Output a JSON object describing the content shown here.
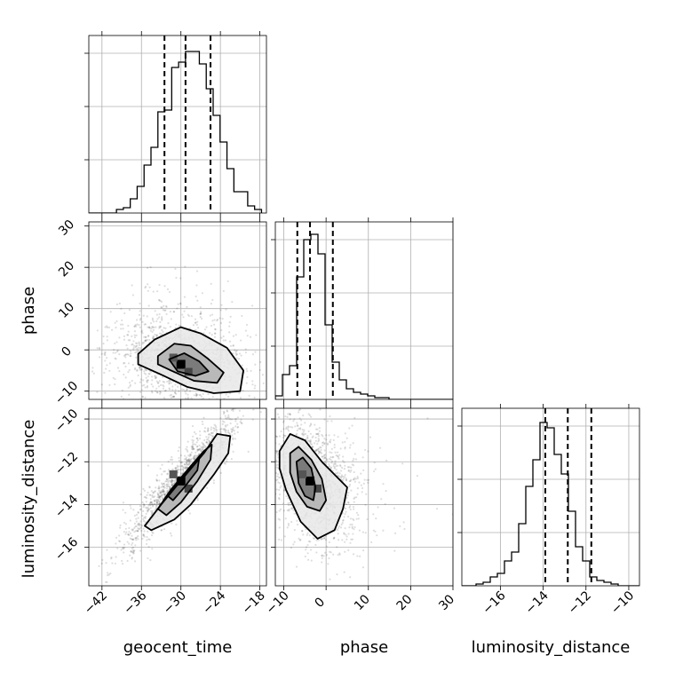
{
  "chart_data": [
    {
      "type": "histogram",
      "panel": "geocent_time",
      "ylim": [
        0,
        1
      ],
      "xlim": [
        -44,
        -17
      ],
      "xticks": [
        -42,
        -36,
        -30,
        -24,
        -18
      ],
      "bin_edges": [
        -44.0,
        -42.95,
        -41.9,
        -40.85,
        -39.8,
        -38.75,
        -37.7,
        -36.65,
        -35.6,
        -34.55,
        -33.5,
        -32.45,
        -31.4,
        -30.35,
        -29.3,
        -28.25,
        -27.2,
        -26.15,
        -25.1,
        -24.05,
        -23.0,
        -21.95,
        -20.9,
        -19.85,
        -18.8,
        -17.75
      ],
      "counts": [
        0.0,
        0.0,
        0.0,
        0.0,
        0.02,
        0.03,
        0.08,
        0.15,
        0.27,
        0.37,
        0.57,
        0.58,
        0.82,
        0.85,
        0.91,
        0.91,
        0.84,
        0.7,
        0.55,
        0.4,
        0.25,
        0.12,
        0.12,
        0.04,
        0.02
      ],
      "quantiles": [
        -32.5,
        -29.3,
        -25.5
      ]
    },
    {
      "type": "histogram",
      "panel": "phase",
      "ylim": [
        0,
        1
      ],
      "xlim": [
        -12,
        30
      ],
      "xticks": [
        -10,
        0,
        10,
        20,
        30
      ],
      "bin_edges": [
        -12.0,
        -10.32,
        -8.64,
        -6.96,
        -5.28,
        -3.6,
        -1.92,
        -0.24,
        1.44,
        3.12,
        4.8,
        6.48,
        8.16,
        9.84,
        11.52,
        13.2,
        14.88,
        16.56,
        18.24,
        19.92,
        21.6,
        23.28,
        24.96,
        26.64,
        28.32,
        30.0
      ],
      "counts": [
        0.02,
        0.14,
        0.19,
        0.69,
        0.9,
        0.93,
        0.82,
        0.42,
        0.21,
        0.11,
        0.06,
        0.04,
        0.03,
        0.02,
        0.01,
        0.01,
        0.0,
        0.0,
        0.0,
        0.0,
        0.0,
        0.0,
        0.0,
        0.0,
        0.0
      ],
      "quantiles": [
        -6.8,
        -3.8,
        1.6
      ]
    },
    {
      "type": "histogram",
      "panel": "luminosity_distance",
      "ylim": [
        0,
        1
      ],
      "xlim": [
        -17.8,
        -9.5
      ],
      "xticks": [
        -16,
        -14,
        -12,
        -10
      ],
      "bin_edges": [
        -17.8,
        -17.468,
        -17.136,
        -16.804,
        -16.472,
        -16.14,
        -15.808,
        -15.476,
        -15.144,
        -14.812,
        -14.48,
        -14.148,
        -13.816,
        -13.484,
        -13.152,
        -12.82,
        -12.488,
        -12.156,
        -11.824,
        -11.492,
        -11.16,
        -10.828,
        -10.496,
        -10.164,
        -9.832,
        -9.5
      ],
      "counts": [
        0.0,
        0.0,
        0.01,
        0.02,
        0.05,
        0.07,
        0.14,
        0.19,
        0.35,
        0.56,
        0.71,
        0.92,
        0.89,
        0.74,
        0.63,
        0.42,
        0.22,
        0.14,
        0.05,
        0.03,
        0.02,
        0.01,
        0.0,
        0.0,
        0.0
      ],
      "quantiles": [
        -13.9,
        -12.85,
        -11.75
      ]
    },
    {
      "type": "scatter",
      "panel": "geocent_time vs phase",
      "xlabel": "",
      "ylabel": "phase",
      "xlim": [
        -44,
        -17
      ],
      "ylim": [
        -12,
        31
      ],
      "yticks": [
        -10,
        0,
        10,
        20,
        30
      ],
      "center": [
        -30,
        -3.5
      ],
      "density_peak": [
        -30,
        -3.5
      ],
      "contours": [
        [
          [
            -36.5,
            -1.0
          ],
          [
            -34,
            2.5
          ],
          [
            -30,
            5.5
          ],
          [
            -27,
            4
          ],
          [
            -23,
            0.5
          ],
          [
            -20.5,
            -5
          ],
          [
            -21,
            -10
          ],
          [
            -25,
            -10.5
          ],
          [
            -29,
            -9
          ],
          [
            -33,
            -6
          ],
          [
            -36.5,
            -3.5
          ]
        ],
        [
          [
            -33.5,
            -1.5
          ],
          [
            -31,
            1.5
          ],
          [
            -28.5,
            1
          ],
          [
            -26,
            -2
          ],
          [
            -23.5,
            -5.5
          ],
          [
            -24.5,
            -8
          ],
          [
            -28,
            -7.5
          ],
          [
            -31.5,
            -5
          ],
          [
            -33.5,
            -3.5
          ]
        ],
        [
          [
            -31.8,
            -2.3
          ],
          [
            -29.5,
            -0.8
          ],
          [
            -27.2,
            -2.8
          ],
          [
            -25.8,
            -5.2
          ],
          [
            -27.8,
            -6.3
          ],
          [
            -30.5,
            -5.2
          ]
        ]
      ]
    },
    {
      "type": "scatter",
      "panel": "geocent_time vs luminosity_distance",
      "xlabel": "geocent_time",
      "ylabel": "luminosity_distance",
      "xlim": [
        -44,
        -17
      ],
      "ylim": [
        -17.8,
        -9.5
      ],
      "xticks": [
        -42,
        -36,
        -30,
        -24,
        -18
      ],
      "yticks": [
        -16,
        -14,
        -12,
        -10
      ],
      "center": [
        -30,
        -12.9
      ],
      "density_peak": [
        -30,
        -12.9
      ],
      "contours": [
        [
          [
            -35.5,
            -15.0
          ],
          [
            -33,
            -14.0
          ],
          [
            -29.5,
            -12.7
          ],
          [
            -26.5,
            -11.6
          ],
          [
            -24.5,
            -10.7
          ],
          [
            -22.5,
            -10.8
          ],
          [
            -22.8,
            -11.6
          ],
          [
            -25,
            -12.6
          ],
          [
            -28.5,
            -14.0
          ],
          [
            -31,
            -14.7
          ],
          [
            -34.5,
            -15.2
          ]
        ],
        [
          [
            -33.5,
            -14.2
          ],
          [
            -31.5,
            -13.3
          ],
          [
            -28.5,
            -12.2
          ],
          [
            -26.5,
            -11.5
          ],
          [
            -25.3,
            -11.2
          ],
          [
            -25.5,
            -11.9
          ],
          [
            -27.5,
            -12.9
          ],
          [
            -30,
            -13.9
          ],
          [
            -32.2,
            -14.5
          ]
        ],
        [
          [
            -32,
            -13.6
          ],
          [
            -30,
            -12.8
          ],
          [
            -28.2,
            -12.1
          ],
          [
            -27.2,
            -11.8
          ],
          [
            -27.5,
            -12.4
          ],
          [
            -29.5,
            -13.2
          ],
          [
            -31.2,
            -13.8
          ]
        ]
      ]
    },
    {
      "type": "scatter",
      "panel": "phase vs luminosity_distance",
      "xlabel": "phase",
      "xlim": [
        -12,
        30
      ],
      "ylim": [
        -17.8,
        -9.5
      ],
      "xticks": [
        -10,
        0,
        10,
        20,
        30
      ],
      "center": [
        -3.8,
        -12.9
      ],
      "density_peak": [
        -3.8,
        -12.9
      ],
      "contours": [
        [
          [
            -11,
            -11.5
          ],
          [
            -8.5,
            -10.7
          ],
          [
            -5,
            -11
          ],
          [
            -1,
            -12
          ],
          [
            1.5,
            -12.5
          ],
          [
            5,
            -13.2
          ],
          [
            4,
            -14.2
          ],
          [
            2,
            -15.2
          ],
          [
            -2,
            -15.6
          ],
          [
            -6,
            -14.8
          ],
          [
            -9.5,
            -13.3
          ],
          [
            -11,
            -12.3
          ]
        ],
        [
          [
            -8.5,
            -11.6
          ],
          [
            -6.5,
            -11.3
          ],
          [
            -3.5,
            -11.9
          ],
          [
            -1,
            -12.8
          ],
          [
            0,
            -13.8
          ],
          [
            -1.5,
            -14.3
          ],
          [
            -4.5,
            -14.1
          ],
          [
            -7,
            -13.4
          ],
          [
            -8.5,
            -12.5
          ]
        ],
        [
          [
            -7,
            -12.0
          ],
          [
            -5.5,
            -11.8
          ],
          [
            -3.5,
            -12.3
          ],
          [
            -2.5,
            -13.2
          ],
          [
            -3,
            -13.8
          ],
          [
            -5,
            -13.6
          ],
          [
            -6.5,
            -13.0
          ]
        ]
      ]
    }
  ]
}
